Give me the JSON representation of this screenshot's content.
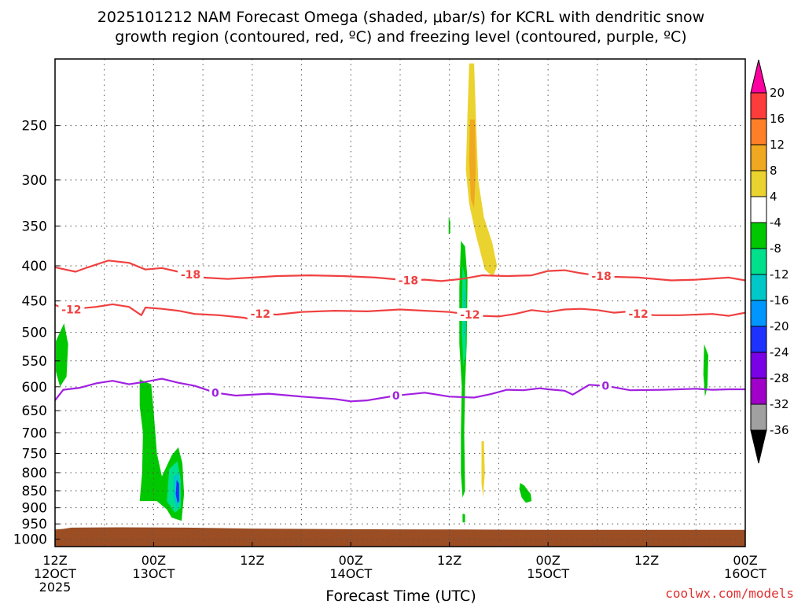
{
  "chart_data": {
    "type": "heatmap",
    "title_line1": "2025101212 NAM Forecast Omega (shaded, μbar/s) for KCRL with dendritic snow",
    "title_line2": "growth region (contoured, red, ºC) and freezing level (contoured, purple, ºC)",
    "xlabel": "Forecast Time (UTC)",
    "ylabel": "",
    "watermark": "coolwx.com/models",
    "x_range_hours": [
      0,
      84
    ],
    "y_axis": {
      "type": "log-pressure",
      "range_hPa": [
        200,
        1025
      ],
      "ticks": [
        250,
        300,
        350,
        400,
        450,
        500,
        550,
        600,
        650,
        700,
        750,
        800,
        850,
        900,
        950,
        1000
      ]
    },
    "x_ticks": [
      {
        "hour": 0,
        "l1": "12Z",
        "l2": "12OCT",
        "l3": "2025"
      },
      {
        "hour": 12,
        "l1": "00Z",
        "l2": "13OCT",
        "l3": ""
      },
      {
        "hour": 24,
        "l1": "12Z",
        "l2": "",
        "l3": ""
      },
      {
        "hour": 36,
        "l1": "00Z",
        "l2": "14OCT",
        "l3": ""
      },
      {
        "hour": 48,
        "l1": "12Z",
        "l2": "",
        "l3": ""
      },
      {
        "hour": 60,
        "l1": "00Z",
        "l2": "15OCT",
        "l3": ""
      },
      {
        "hour": 72,
        "l1": "12Z",
        "l2": "",
        "l3": ""
      },
      {
        "hour": 84,
        "l1": "00Z",
        "l2": "16OCT",
        "l3": ""
      }
    ],
    "colorbar": {
      "labels": [
        "20",
        "16",
        "12",
        "8",
        "4",
        "-4",
        "-8",
        "-12",
        "-16",
        "-20",
        "-24",
        "-28",
        "-32",
        "-36"
      ],
      "colors": [
        "#ff00a0",
        "#ff3c3c",
        "#ff7f28",
        "#f0a820",
        "#ebd32f",
        "#ffffff",
        "#00c800",
        "#00e08c",
        "#00c8c8",
        "#0096ff",
        "#1e32ff",
        "#7a00e6",
        "#a000c8",
        "#a0a0a0",
        "#000000"
      ]
    },
    "contours": [
      {
        "name": "dgz-minus-18",
        "color": "#f04040",
        "label": "-18",
        "label_hours": [
          16.5,
          43,
          66.5
        ],
        "points": [
          [
            0,
            402
          ],
          [
            2.5,
            408
          ],
          [
            4,
            402
          ],
          [
            6.5,
            393
          ],
          [
            9,
            396
          ],
          [
            11,
            405
          ],
          [
            13,
            403
          ],
          [
            15,
            408
          ],
          [
            16.5,
            412
          ],
          [
            18,
            416
          ],
          [
            21,
            418
          ],
          [
            24,
            416
          ],
          [
            27,
            414
          ],
          [
            31,
            413
          ],
          [
            35,
            414
          ],
          [
            39,
            416
          ],
          [
            42,
            419
          ],
          [
            43,
            420
          ],
          [
            45,
            419
          ],
          [
            47,
            421
          ],
          [
            49.5,
            418
          ],
          [
            52,
            413
          ],
          [
            55,
            414
          ],
          [
            58,
            413
          ],
          [
            60,
            407
          ],
          [
            62,
            406
          ],
          [
            64,
            410
          ],
          [
            66.5,
            414
          ],
          [
            68,
            415
          ],
          [
            71,
            416
          ],
          [
            75,
            420
          ],
          [
            78,
            419
          ],
          [
            82,
            416
          ],
          [
            84,
            420
          ]
        ]
      },
      {
        "name": "dgz-minus-12",
        "color": "#f04040",
        "label": "-12",
        "label_hours": [
          2,
          25,
          50.5,
          71
        ],
        "points": [
          [
            0,
            456
          ],
          [
            1.5,
            464
          ],
          [
            2.5,
            462
          ],
          [
            5,
            459
          ],
          [
            7,
            455
          ],
          [
            9,
            459
          ],
          [
            10.5,
            472
          ],
          [
            11,
            460
          ],
          [
            13,
            462
          ],
          [
            15,
            465
          ],
          [
            17,
            470
          ],
          [
            20,
            472
          ],
          [
            23,
            476
          ],
          [
            24,
            479
          ],
          [
            24.5,
            476
          ],
          [
            25,
            470
          ],
          [
            27,
            471
          ],
          [
            30,
            467
          ],
          [
            34,
            465
          ],
          [
            38,
            466
          ],
          [
            42,
            463
          ],
          [
            45,
            465
          ],
          [
            48,
            467
          ],
          [
            50.5,
            471
          ],
          [
            52,
            473
          ],
          [
            54,
            474
          ],
          [
            56,
            470
          ],
          [
            58,
            464
          ],
          [
            60,
            467
          ],
          [
            62,
            463
          ],
          [
            64,
            462
          ],
          [
            66,
            464
          ],
          [
            68,
            468
          ],
          [
            70,
            466
          ],
          [
            71,
            470
          ],
          [
            73,
            472
          ],
          [
            76,
            472
          ],
          [
            80,
            470
          ],
          [
            82,
            473
          ],
          [
            84,
            468
          ]
        ]
      },
      {
        "name": "freezing-level-0",
        "color": "#a020e0",
        "label": "0",
        "label_hours": [
          19.5,
          41.5,
          67
        ],
        "points": [
          [
            0,
            628
          ],
          [
            1,
            606
          ],
          [
            3,
            602
          ],
          [
            5,
            593
          ],
          [
            7,
            588
          ],
          [
            9,
            595
          ],
          [
            11,
            590
          ],
          [
            13,
            584
          ],
          [
            15,
            592
          ],
          [
            17,
            598
          ],
          [
            19.5,
            612
          ],
          [
            22,
            618
          ],
          [
            26,
            614
          ],
          [
            30,
            620
          ],
          [
            34,
            625
          ],
          [
            36,
            630
          ],
          [
            38,
            628
          ],
          [
            41.5,
            618
          ],
          [
            45,
            612
          ],
          [
            48,
            620
          ],
          [
            51,
            622
          ],
          [
            53,
            615
          ],
          [
            55,
            606
          ],
          [
            57,
            607
          ],
          [
            59,
            603
          ],
          [
            60,
            605
          ],
          [
            62,
            608
          ],
          [
            63,
            616
          ],
          [
            65,
            596
          ],
          [
            67,
            598
          ],
          [
            70,
            607
          ],
          [
            74,
            606
          ],
          [
            78,
            604
          ],
          [
            80,
            606
          ],
          [
            82,
            605
          ],
          [
            84,
            605
          ]
        ]
      }
    ],
    "omega_regions": [
      {
        "name": "sinking-upper",
        "color": "#ebd32f",
        "points": [
          [
            50.4,
            203
          ],
          [
            51.0,
            203
          ],
          [
            51.2,
            240
          ],
          [
            51.5,
            300
          ],
          [
            52.2,
            340
          ],
          [
            53.2,
            370
          ],
          [
            53.8,
            400
          ],
          [
            53.3,
            415
          ],
          [
            52.3,
            405
          ],
          [
            51.2,
            360
          ],
          [
            50.4,
            325
          ],
          [
            50.0,
            290
          ],
          [
            50.2,
            240
          ]
        ]
      },
      {
        "name": "sinking-core",
        "color": "#f0a820",
        "points": [
          [
            50.5,
            245
          ],
          [
            51.1,
            245
          ],
          [
            51.2,
            290
          ],
          [
            51.0,
            330
          ],
          [
            50.6,
            320
          ],
          [
            50.4,
            280
          ]
        ]
      },
      {
        "name": "sinking-lower",
        "color": "#ebd32f",
        "points": [
          [
            51.9,
            720
          ],
          [
            52.2,
            720
          ],
          [
            52.3,
            800
          ],
          [
            52.1,
            870
          ],
          [
            51.9,
            830
          ]
        ]
      },
      {
        "name": "rising-a",
        "color": "#00c800",
        "points": [
          [
            1.1,
            485
          ],
          [
            1.6,
            520
          ],
          [
            1.4,
            580
          ],
          [
            0.6,
            600
          ],
          [
            0.1,
            570
          ],
          [
            0.1,
            515
          ]
        ]
      },
      {
        "name": "rising-b",
        "color": "#00c800",
        "points": [
          [
            10.3,
            585
          ],
          [
            11.7,
            595
          ],
          [
            12.0,
            650
          ],
          [
            12.4,
            750
          ],
          [
            13.0,
            810
          ],
          [
            14.2,
            755
          ],
          [
            15.0,
            735
          ],
          [
            15.5,
            775
          ],
          [
            15.7,
            860
          ],
          [
            15.4,
            940
          ],
          [
            14.2,
            930
          ],
          [
            13.6,
            905
          ],
          [
            12.4,
            880
          ],
          [
            10.3,
            880
          ],
          [
            10.6,
            800
          ],
          [
            10.7,
            700
          ],
          [
            10.3,
            640
          ]
        ]
      },
      {
        "name": "rising-b-inner",
        "color": "#00e08c",
        "points": [
          [
            13.9,
            790
          ],
          [
            14.9,
            770
          ],
          [
            15.3,
            820
          ],
          [
            15.3,
            900
          ],
          [
            14.6,
            915
          ],
          [
            13.6,
            880
          ]
        ]
      },
      {
        "name": "rising-b-core",
        "color": "#00c8c8",
        "points": [
          [
            14.4,
            810
          ],
          [
            15.1,
            800
          ],
          [
            15.2,
            880
          ],
          [
            14.8,
            900
          ],
          [
            14.4,
            870
          ]
        ]
      },
      {
        "name": "rising-b-max",
        "color": "#1e32ff",
        "points": [
          [
            14.8,
            820
          ],
          [
            15.1,
            830
          ],
          [
            15.1,
            880
          ],
          [
            14.9,
            885
          ],
          [
            14.7,
            860
          ]
        ]
      },
      {
        "name": "rising-c",
        "color": "#00c800",
        "points": [
          [
            47.9,
            340
          ],
          [
            48.1,
            345
          ],
          [
            48.1,
            358
          ],
          [
            47.9,
            360
          ]
        ]
      },
      {
        "name": "rising-d",
        "color": "#00c800",
        "points": [
          [
            49.4,
            368
          ],
          [
            49.9,
            375
          ],
          [
            50.2,
            420
          ],
          [
            50.1,
            520
          ],
          [
            49.9,
            600
          ],
          [
            49.8,
            700
          ],
          [
            49.9,
            850
          ],
          [
            49.6,
            870
          ],
          [
            49.4,
            800
          ],
          [
            49.4,
            700
          ],
          [
            49.5,
            600
          ],
          [
            49.2,
            520
          ],
          [
            49.2,
            430
          ]
        ]
      },
      {
        "name": "rising-d-inner",
        "color": "#00e08c",
        "points": [
          [
            49.6,
            400
          ],
          [
            50.0,
            420
          ],
          [
            50.0,
            540
          ],
          [
            49.7,
            560
          ],
          [
            49.5,
            500
          ]
        ]
      },
      {
        "name": "rising-d-core",
        "color": "#00c8c8",
        "points": [
          [
            49.7,
            430
          ],
          [
            49.9,
            440
          ],
          [
            49.9,
            500
          ],
          [
            49.7,
            510
          ]
        ]
      },
      {
        "name": "rising-e",
        "color": "#00c800",
        "points": [
          [
            49.6,
            918
          ],
          [
            49.9,
            920
          ],
          [
            49.9,
            945
          ],
          [
            49.6,
            945
          ]
        ]
      },
      {
        "name": "rising-f",
        "color": "#00c800",
        "points": [
          [
            56.6,
            828
          ],
          [
            57.1,
            835
          ],
          [
            57.9,
            860
          ],
          [
            58.0,
            880
          ],
          [
            57.3,
            885
          ],
          [
            56.8,
            870
          ],
          [
            56.5,
            845
          ]
        ]
      },
      {
        "name": "rising-g",
        "color": "#00c800",
        "points": [
          [
            79.0,
            520
          ],
          [
            79.5,
            540
          ],
          [
            79.4,
            600
          ],
          [
            79.1,
            620
          ],
          [
            78.9,
            575
          ]
        ]
      }
    ],
    "terrain": {
      "name": "terrain",
      "color": "#9b4d24",
      "points": [
        [
          0,
          968
        ],
        [
          1,
          966
        ],
        [
          2,
          962
        ],
        [
          8,
          961
        ],
        [
          16,
          962
        ],
        [
          24,
          965
        ],
        [
          36,
          967
        ],
        [
          50,
          968
        ],
        [
          60,
          969
        ],
        [
          70,
          969
        ],
        [
          84,
          969
        ]
      ]
    }
  }
}
